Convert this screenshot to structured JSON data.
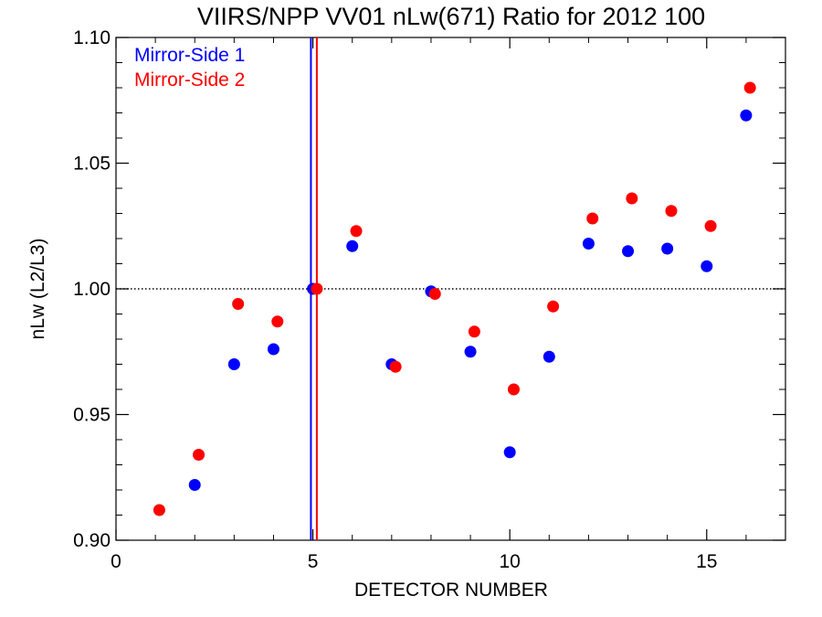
{
  "chart_data": {
    "type": "scatter",
    "title": "VIIRS/NPP VV01 nLw(671) Ratio for 2012 100",
    "xlabel": "DETECTOR NUMBER",
    "ylabel": "nLw (L2/L3)",
    "xlim": [
      0,
      17
    ],
    "ylim": [
      0.9,
      1.1
    ],
    "x_ticks": [
      0,
      5,
      10,
      15
    ],
    "x_tick_labels": [
      "0",
      "5",
      "10",
      "15"
    ],
    "y_ticks": [
      0.9,
      0.95,
      1.0,
      1.05,
      1.1
    ],
    "y_tick_labels": [
      "0.90",
      "0.95",
      "1.00",
      "1.05",
      "1.10"
    ],
    "reference_line": {
      "y": 1.0,
      "style": "dotted"
    },
    "vertical_lines": [
      {
        "x": 4.95,
        "color": "#0000ff"
      },
      {
        "x": 5.1,
        "color": "#ff0000"
      }
    ],
    "legend_placement": "top-left",
    "series": [
      {
        "name": "Mirror-Side 1",
        "color": "#0000ff",
        "x": [
          2,
          3,
          4,
          5,
          6,
          7,
          8,
          9,
          10,
          11,
          12,
          13,
          14,
          15,
          16
        ],
        "y": [
          0.922,
          0.97,
          0.976,
          1.0,
          1.017,
          0.97,
          0.999,
          0.975,
          0.935,
          0.973,
          1.018,
          1.015,
          1.016,
          1.009,
          1.069
        ]
      },
      {
        "name": "Mirror-Side 2",
        "color": "#ff0000",
        "x": [
          1.1,
          2.1,
          3.1,
          4.1,
          5.1,
          6.1,
          7.1,
          8.1,
          9.1,
          10.1,
          11.1,
          12.1,
          13.1,
          14.1,
          15.1,
          16.1
        ],
        "y": [
          0.912,
          0.934,
          0.994,
          0.987,
          1.0,
          1.023,
          0.969,
          0.998,
          0.983,
          0.96,
          0.993,
          1.028,
          1.036,
          1.031,
          1.025,
          1.08
        ]
      }
    ]
  }
}
